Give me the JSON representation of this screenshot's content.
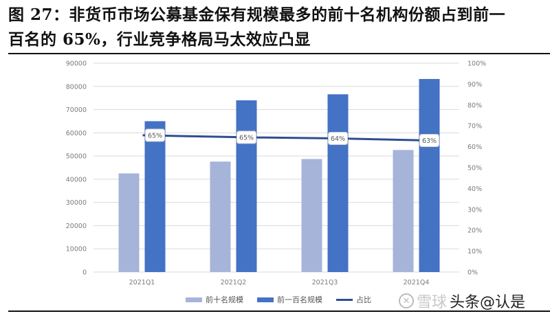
{
  "title": {
    "line1": "图 27：非货币市场公募基金保有规模最多的前十名机构份额占到前一",
    "line2": "百名的 65%，行业竞争格局马太效应凸显"
  },
  "chart_data": {
    "type": "bar",
    "title": "图 27：非货币市场公募基金保有规模最多的前十名机构份额占到前一百名的 65%，行业竞争格局马太效应凸显",
    "categories": [
      "2021Q1",
      "2021Q2",
      "2021Q3",
      "2021Q4"
    ],
    "series": [
      {
        "name": "前十名规模",
        "type": "bar",
        "axis": "left",
        "color": "#a6b4da",
        "values": [
          42500,
          47600,
          48700,
          52600
        ]
      },
      {
        "name": "前一百名规模",
        "type": "bar",
        "axis": "left",
        "color": "#4472c4",
        "values": [
          65000,
          74000,
          76600,
          83200
        ]
      },
      {
        "name": "占比",
        "type": "line",
        "axis": "right",
        "color": "#2e4d8f",
        "values": [
          0.65,
          0.65,
          0.64,
          0.63
        ],
        "labels": [
          "65%",
          "65%",
          "64%",
          "63%"
        ]
      }
    ],
    "left_axis": {
      "min": 0,
      "max": 90000,
      "step": 10000,
      "ticks": [
        "0",
        "10000",
        "20000",
        "30000",
        "40000",
        "50000",
        "60000",
        "70000",
        "80000",
        "90000"
      ]
    },
    "right_axis": {
      "min": 0,
      "max": 1.0,
      "step": 0.1,
      "ticks": [
        "0%",
        "10%",
        "20%",
        "30%",
        "40%",
        "50%",
        "60%",
        "70%",
        "80%",
        "90%",
        "100%"
      ]
    },
    "xlabel": "",
    "ylabel": "",
    "grid": true,
    "legend_position": "bottom"
  },
  "legend": [
    {
      "label": "前十名规模",
      "kind": "bar",
      "color": "#a6b4da"
    },
    {
      "label": "前一百名规模",
      "kind": "bar",
      "color": "#4472c4"
    },
    {
      "label": "占比",
      "kind": "line",
      "color": "#2e4d8f"
    }
  ],
  "watermark": {
    "logo": "✕",
    "faint_text": "雪球",
    "text": "头条@认是"
  }
}
